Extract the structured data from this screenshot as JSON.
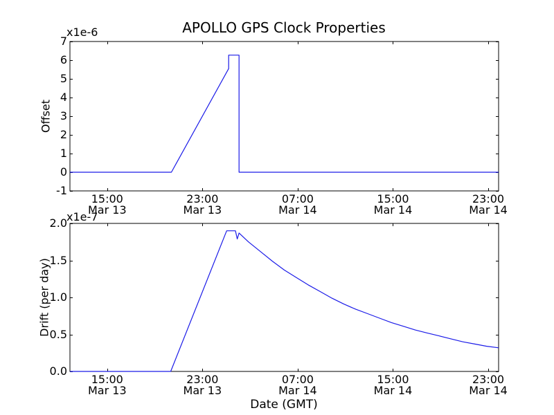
{
  "figure": {
    "background_color": "#ffffff",
    "line_color": "#1a1ae8",
    "axis_color": "#000000"
  },
  "chart_data": [
    {
      "name": "offset",
      "type": "line",
      "title": "APOLLO GPS Clock Properties",
      "ylabel": "Offset",
      "y_offset_text": "x1e-6",
      "ylim": [
        -1,
        7
      ],
      "yticks": [
        {
          "value": 7,
          "label": "7"
        },
        {
          "value": 6,
          "label": "6"
        },
        {
          "value": 5,
          "label": "5"
        },
        {
          "value": 4,
          "label": "4"
        },
        {
          "value": 3,
          "label": "3"
        },
        {
          "value": 2,
          "label": "2"
        },
        {
          "value": 1,
          "label": "1"
        },
        {
          "value": 0,
          "label": "0"
        },
        {
          "value": -1,
          "label": "-1"
        }
      ],
      "x_axis_hours_range": [
        0,
        36
      ],
      "xticks": [
        {
          "hour": 3.13,
          "time": "15:00",
          "date": "Mar 13"
        },
        {
          "hour": 11.13,
          "time": "23:00",
          "date": "Mar 13"
        },
        {
          "hour": 19.13,
          "time": "07:00",
          "date": "Mar 14"
        },
        {
          "hour": 27.13,
          "time": "15:00",
          "date": "Mar 14"
        },
        {
          "hour": 35.13,
          "time": "23:00",
          "date": "Mar 14"
        }
      ],
      "series": [
        {
          "name": "offset",
          "points": [
            [
              0,
              0
            ],
            [
              8.52,
              0
            ],
            [
              13.33,
              5.55
            ],
            [
              13.33,
              6.27
            ],
            [
              14.2,
              6.27
            ],
            [
              14.2,
              0
            ],
            [
              36,
              0
            ]
          ]
        }
      ]
    },
    {
      "name": "drift",
      "type": "line",
      "xlabel": "Date (GMT)",
      "ylabel": "Drift (per day)",
      "y_offset_text": "x1e-7",
      "ylim": [
        0,
        2
      ],
      "yticks": [
        {
          "value": 2.0,
          "label": "2.0"
        },
        {
          "value": 1.5,
          "label": "1.5"
        },
        {
          "value": 1.0,
          "label": "1.0"
        },
        {
          "value": 0.5,
          "label": "0.5"
        },
        {
          "value": 0.0,
          "label": "0.0"
        }
      ],
      "x_axis_hours_range": [
        0,
        36
      ],
      "xticks": [
        {
          "hour": 3.13,
          "time": "15:00",
          "date": "Mar 13"
        },
        {
          "hour": 11.13,
          "time": "23:00",
          "date": "Mar 13"
        },
        {
          "hour": 19.13,
          "time": "07:00",
          "date": "Mar 14"
        },
        {
          "hour": 27.13,
          "time": "15:00",
          "date": "Mar 14"
        },
        {
          "hour": 35.13,
          "time": "23:00",
          "date": "Mar 14"
        }
      ],
      "series": [
        {
          "name": "drift",
          "points": [
            [
              0,
              0
            ],
            [
              8.46,
              0
            ],
            [
              13.16,
              1.9
            ],
            [
              13.9,
              1.9
            ],
            [
              14.05,
              1.79
            ],
            [
              14.2,
              1.87
            ],
            [
              15,
              1.75
            ],
            [
              16,
              1.62
            ],
            [
              17,
              1.49
            ],
            [
              18,
              1.37
            ],
            [
              19,
              1.27
            ],
            [
              20,
              1.17
            ],
            [
              21,
              1.08
            ],
            [
              22,
              0.99
            ],
            [
              23,
              0.91
            ],
            [
              24,
              0.84
            ],
            [
              25,
              0.78
            ],
            [
              26,
              0.72
            ],
            [
              27,
              0.66
            ],
            [
              28,
              0.61
            ],
            [
              29,
              0.56
            ],
            [
              30,
              0.52
            ],
            [
              31,
              0.48
            ],
            [
              32,
              0.44
            ],
            [
              33,
              0.4
            ],
            [
              34,
              0.37
            ],
            [
              35,
              0.34
            ],
            [
              36,
              0.32
            ]
          ]
        }
      ]
    }
  ]
}
